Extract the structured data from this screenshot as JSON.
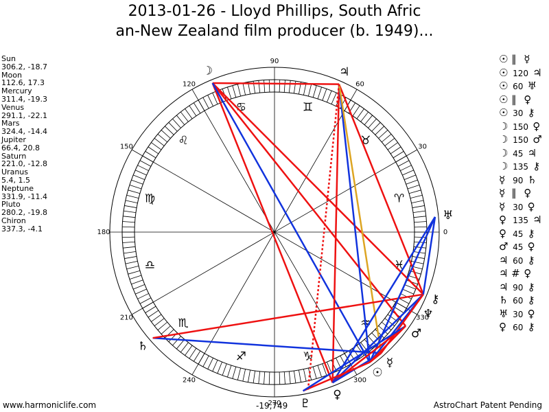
{
  "title": {
    "line1": "2013-01-26 - Lloyd Phillips, South Afric",
    "line2": "an-New Zealand film producer (b. 1949)..."
  },
  "planets": [
    {
      "name": "Sun",
      "value": "306.2, -18.7"
    },
    {
      "name": "Moon",
      "value": "112.6, 17.3"
    },
    {
      "name": "Mercury",
      "value": "311.4, -19.3"
    },
    {
      "name": "Venus",
      "value": "291.1, -22.1"
    },
    {
      "name": "Mars",
      "value": "324.4, -14.4"
    },
    {
      "name": "Jupiter",
      "value": "66.4, 20.8"
    },
    {
      "name": "Saturn",
      "value": "221.0, -12.8"
    },
    {
      "name": "Uranus",
      "value": "5.4, 1.5"
    },
    {
      "name": "Neptune",
      "value": "331.9, -11.4"
    },
    {
      "name": "Pluto",
      "value": "280.2, -19.8"
    },
    {
      "name": "Chiron",
      "value": "337.3, -4.1"
    }
  ],
  "aspects": [
    {
      "p1": "☉",
      "asp": "∥",
      "p2": "☿",
      "angle": ""
    },
    {
      "p1": "☉",
      "asp": "",
      "p2": "♃",
      "angle": "120"
    },
    {
      "p1": "☉",
      "asp": "",
      "p2": "♅",
      "angle": "60"
    },
    {
      "p1": "☉",
      "asp": "∥",
      "p2": "♀",
      "angle": ""
    },
    {
      "p1": "☉",
      "asp": "",
      "p2": "⚷",
      "angle": "30"
    },
    {
      "p1": "☽",
      "asp": "",
      "p2": "♀",
      "angle": "150"
    },
    {
      "p1": "☽",
      "asp": "",
      "p2": "♂",
      "angle": "150"
    },
    {
      "p1": "☽",
      "asp": "",
      "p2": "♃",
      "angle": "45"
    },
    {
      "p1": "☽",
      "asp": "",
      "p2": "⚷",
      "angle": "135"
    },
    {
      "p1": "☿",
      "asp": "",
      "p2": "♄",
      "angle": "90"
    },
    {
      "p1": "☿",
      "asp": "∥",
      "p2": "♀",
      "angle": ""
    },
    {
      "p1": "☿",
      "asp": "",
      "p2": "♀",
      "angle": "30"
    },
    {
      "p1": "♀",
      "asp": "",
      "p2": "♃",
      "angle": "135"
    },
    {
      "p1": "♀",
      "asp": "",
      "p2": "⚷",
      "angle": "45"
    },
    {
      "p1": "♂",
      "asp": "",
      "p2": "♀",
      "angle": "45"
    },
    {
      "p1": "♃",
      "asp": "",
      "p2": "⚷",
      "angle": "60"
    },
    {
      "p1": "♃",
      "asp": "#",
      "p2": "♀",
      "angle": ""
    },
    {
      "p1": "♃",
      "asp": "",
      "p2": "⚷",
      "angle": "90"
    },
    {
      "p1": "♄",
      "asp": "",
      "p2": "⚷",
      "angle": "60"
    },
    {
      "p1": "♅",
      "asp": "",
      "p2": "♀",
      "angle": "30"
    },
    {
      "p1": "♀",
      "asp": "",
      "p2": "⚷",
      "angle": "60"
    }
  ],
  "wheel": {
    "degree_labels": [
      "0",
      "30",
      "60",
      "90",
      "120",
      "150",
      "180",
      "210",
      "240",
      "270",
      "300",
      "330"
    ],
    "zodiac_signs": [
      {
        "glyph": "♈",
        "lon": 15
      },
      {
        "glyph": "♉",
        "lon": 45
      },
      {
        "glyph": "♊",
        "lon": 75
      },
      {
        "glyph": "♋",
        "lon": 105
      },
      {
        "glyph": "♌",
        "lon": 135
      },
      {
        "glyph": "♍",
        "lon": 165
      },
      {
        "glyph": "♎",
        "lon": 195
      },
      {
        "glyph": "♏",
        "lon": 225
      },
      {
        "glyph": "♐",
        "lon": 255
      },
      {
        "glyph": "♑",
        "lon": 285
      },
      {
        "glyph": "♒",
        "lon": 315
      },
      {
        "glyph": "♓",
        "lon": 345
      }
    ],
    "planet_glyphs": [
      {
        "glyph": "☉",
        "lon": 306.2
      },
      {
        "glyph": "☽",
        "lon": 112.6
      },
      {
        "glyph": "☿",
        "lon": 311.4
      },
      {
        "glyph": "♀",
        "lon": 291.1
      },
      {
        "glyph": "♂",
        "lon": 324.4
      },
      {
        "glyph": "♃",
        "lon": 66.4
      },
      {
        "glyph": "♄",
        "lon": 221.0
      },
      {
        "glyph": "♅",
        "lon": 5.4
      },
      {
        "glyph": "♆",
        "lon": 331.9
      },
      {
        "glyph": "♇",
        "lon": 280.2
      },
      {
        "glyph": "⚷",
        "lon": 337.3
      }
    ],
    "aspect_lines": [
      {
        "from": 112.6,
        "to": 66.4,
        "color": "#ee1111",
        "dash": false
      },
      {
        "from": 112.6,
        "to": 337.3,
        "color": "#ee1111",
        "dash": false
      },
      {
        "from": 112.6,
        "to": 291.1,
        "color": "#ee1111",
        "dash": false
      },
      {
        "from": 112.6,
        "to": 324.4,
        "color": "#ee1111",
        "dash": false
      },
      {
        "from": 112.6,
        "to": 306.2,
        "color": "#1133dd",
        "dash": false
      },
      {
        "from": 66.4,
        "to": 337.3,
        "color": "#ee1111",
        "dash": false
      },
      {
        "from": 66.4,
        "to": 291.1,
        "color": "#ee1111",
        "dash": false
      },
      {
        "from": 66.4,
        "to": 306.2,
        "color": "#1133dd",
        "dash": false
      },
      {
        "from": 66.4,
        "to": 311.4,
        "color": "#dda522",
        "dash": false
      },
      {
        "from": 66.4,
        "to": 282.0,
        "color": "#ee1111",
        "dash": true
      },
      {
        "from": 221.0,
        "to": 311.4,
        "color": "#1133dd",
        "dash": false
      },
      {
        "from": 221.0,
        "to": 337.3,
        "color": "#ee1111",
        "dash": false
      },
      {
        "from": 5.4,
        "to": 306.2,
        "color": "#1133dd",
        "dash": false
      },
      {
        "from": 5.4,
        "to": 291.1,
        "color": "#1133dd",
        "dash": false
      },
      {
        "from": 5.4,
        "to": 337.3,
        "color": "#1133dd",
        "dash": false
      },
      {
        "from": 337.3,
        "to": 306.2,
        "color": "#1133dd",
        "dash": false
      },
      {
        "from": 337.3,
        "to": 291.1,
        "color": "#1133dd",
        "dash": false
      },
      {
        "from": 337.3,
        "to": 311.4,
        "color": "#ee1111",
        "dash": false
      },
      {
        "from": 291.1,
        "to": 324.4,
        "color": "#ee1111",
        "dash": false
      },
      {
        "from": 291.1,
        "to": 311.4,
        "color": "#1133dd",
        "dash": false
      },
      {
        "from": 280.2,
        "to": 306.2,
        "color": "#ee1111",
        "dash": false
      },
      {
        "from": 280.2,
        "to": 324.4,
        "color": "#1133dd",
        "dash": false
      },
      {
        "from": 306.2,
        "to": 324.4,
        "color": "#ee1111",
        "dash": false
      },
      {
        "from": 306.2,
        "to": 311.4,
        "color": "#ee1111",
        "dash": false
      }
    ]
  },
  "bottom_value": "-19,749",
  "footer": {
    "left": "www.harmoniclife.com",
    "right": "AstroChart Patent Pending"
  }
}
